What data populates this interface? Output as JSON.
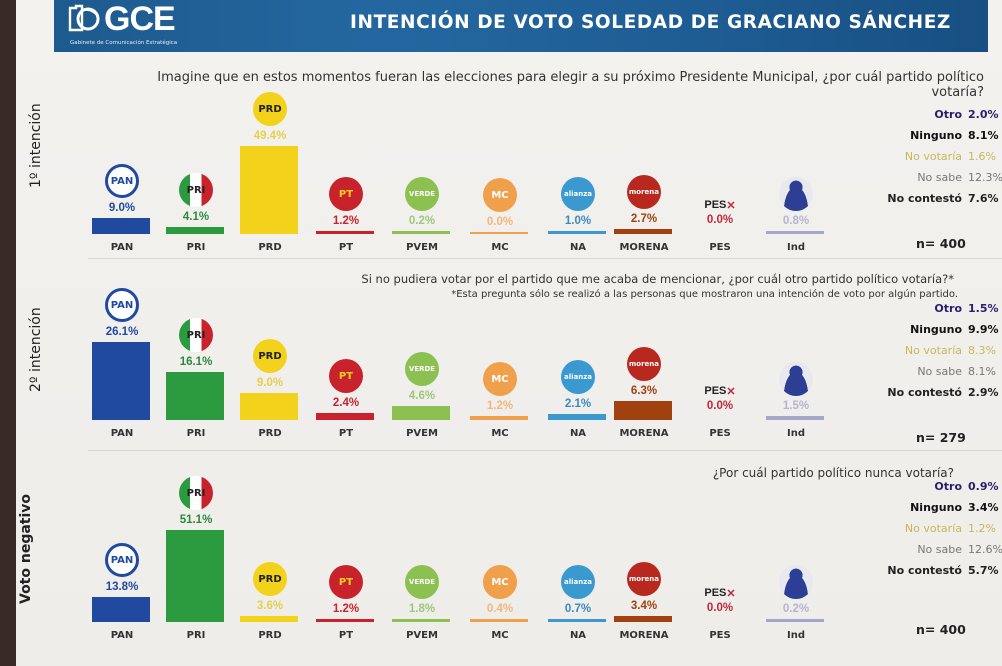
{
  "header": {
    "logo_text": "GCE",
    "logo_subtitle": "Gabinete de Comunicación Estratégica",
    "title": "INTENCIÓN DE VOTO SOLEDAD DE GRACIANO SÁNCHEZ"
  },
  "colors": {
    "header_bg": "#1e5c93",
    "PAN": "#1f4aa0",
    "PRI": "#2c9a3f",
    "PRD": "#f2d21a",
    "PT": "#c8232c",
    "PVEM": "#8cc152",
    "MC": "#f0a04b",
    "NA": "#3a9ad0",
    "MORENA": "#a0410f",
    "PES": "#c0283a",
    "Ind": "#a6a6cc"
  },
  "sections": [
    {
      "side_label": "1º intención",
      "question_line1": "Imagine que en estos momentos fueran las elecciones para elegir a su próximo Presidente Municipal, ¿por cuál partido político",
      "question_line2": "votaría?",
      "note": "",
      "n": "n= 400",
      "bars": [
        {
          "party": "PAN",
          "value": "9.0%"
        },
        {
          "party": "PRI",
          "value": "4.1%"
        },
        {
          "party": "PRD",
          "value": "49.4%"
        },
        {
          "party": "PT",
          "value": "1.2%"
        },
        {
          "party": "PVEM",
          "value": "0.2%"
        },
        {
          "party": "MC",
          "value": "0.0%"
        },
        {
          "party": "NA",
          "value": "1.0%"
        },
        {
          "party": "MORENA",
          "value": "2.7%"
        },
        {
          "party": "PES",
          "value": "0.0%"
        },
        {
          "party": "Ind",
          "value": "0.8%"
        }
      ],
      "extras": [
        {
          "label": "Otro",
          "value": "2.0%"
        },
        {
          "label": "Ninguno",
          "value": "8.1%"
        },
        {
          "label": "No votaría",
          "value": "1.6%"
        },
        {
          "label": "No sabe",
          "value": "12.3%"
        },
        {
          "label": "No contestó",
          "value": "7.6%"
        }
      ]
    },
    {
      "side_label": "2º intención",
      "question_line1": "Si no pudiera votar por el partido que me acaba de mencionar, ¿por cuál otro partido político votaría?*",
      "question_line2": "",
      "note": "*Esta pregunta sólo se realizó a las personas que mostraron una intención de voto por algún partido.",
      "n": "n= 279",
      "bars": [
        {
          "party": "PAN",
          "value": "26.1%"
        },
        {
          "party": "PRI",
          "value": "16.1%"
        },
        {
          "party": "PRD",
          "value": "9.0%"
        },
        {
          "party": "PT",
          "value": "2.4%"
        },
        {
          "party": "PVEM",
          "value": "4.6%"
        },
        {
          "party": "MC",
          "value": "1.2%"
        },
        {
          "party": "NA",
          "value": "2.1%"
        },
        {
          "party": "MORENA",
          "value": "6.3%"
        },
        {
          "party": "PES",
          "value": "0.0%"
        },
        {
          "party": "Ind",
          "value": "1.5%"
        }
      ],
      "extras": [
        {
          "label": "Otro",
          "value": "1.5%"
        },
        {
          "label": "Ninguno",
          "value": "9.9%"
        },
        {
          "label": "No votaría",
          "value": "8.3%"
        },
        {
          "label": "No sabe",
          "value": "8.1%"
        },
        {
          "label": "No contestó",
          "value": "2.9%"
        }
      ]
    },
    {
      "side_label": "Voto negativo",
      "question_line1": "¿Por cuál partido político nunca votaría?",
      "question_line2": "",
      "note": "",
      "n": "n= 400",
      "bars": [
        {
          "party": "PAN",
          "value": "13.8%"
        },
        {
          "party": "PRI",
          "value": "51.1%"
        },
        {
          "party": "PRD",
          "value": "3.6%"
        },
        {
          "party": "PT",
          "value": "1.2%"
        },
        {
          "party": "PVEM",
          "value": "1.8%"
        },
        {
          "party": "MC",
          "value": "0.4%"
        },
        {
          "party": "NA",
          "value": "0.7%"
        },
        {
          "party": "MORENA",
          "value": "3.4%"
        },
        {
          "party": "PES",
          "value": "0.0%"
        },
        {
          "party": "Ind",
          "value": "0.2%"
        }
      ],
      "extras": [
        {
          "label": "Otro",
          "value": "0.9%"
        },
        {
          "label": "Ninguno",
          "value": "3.4%"
        },
        {
          "label": "No votaría",
          "value": "1.2%"
        },
        {
          "label": "No sabe",
          "value": "12.6%"
        },
        {
          "label": "No contestó",
          "value": "5.7%"
        }
      ]
    }
  ],
  "chart_data": [
    {
      "type": "bar",
      "title": "1º intención",
      "subtitle": "Imagine que en estos momentos fueran las elecciones para elegir a su próximo Presidente Municipal, ¿por cuál partido político votaría?",
      "categories": [
        "PAN",
        "PRI",
        "PRD",
        "PT",
        "PVEM",
        "MC",
        "NA",
        "MORENA",
        "PES",
        "Ind"
      ],
      "values": [
        9.0,
        4.1,
        49.4,
        1.2,
        0.2,
        0.0,
        1.0,
        2.7,
        0.0,
        0.8
      ],
      "other_responses": {
        "Otro": 2.0,
        "Ninguno": 8.1,
        "No votaría": 1.6,
        "No sabe": 12.3,
        "No contestó": 7.6
      },
      "n": 400,
      "unit": "%",
      "grid": false
    },
    {
      "type": "bar",
      "title": "2º intención",
      "subtitle": "Si no pudiera votar por el partido que me acaba de mencionar, ¿por cuál otro partido político votaría?*",
      "annotation": "*Esta pregunta sólo se realizó a las personas que mostraron una intención de voto por algún partido.",
      "categories": [
        "PAN",
        "PRI",
        "PRD",
        "PT",
        "PVEM",
        "MC",
        "NA",
        "MORENA",
        "PES",
        "Ind"
      ],
      "values": [
        26.1,
        16.1,
        9.0,
        2.4,
        4.6,
        1.2,
        2.1,
        6.3,
        0.0,
        1.5
      ],
      "other_responses": {
        "Otro": 1.5,
        "Ninguno": 9.9,
        "No votaría": 8.3,
        "No sabe": 8.1,
        "No contestó": 2.9
      },
      "n": 279,
      "unit": "%",
      "grid": false
    },
    {
      "type": "bar",
      "title": "Voto negativo",
      "subtitle": "¿Por cuál partido político nunca votaría?",
      "categories": [
        "PAN",
        "PRI",
        "PRD",
        "PT",
        "PVEM",
        "MC",
        "NA",
        "MORENA",
        "PES",
        "Ind"
      ],
      "values": [
        13.8,
        51.1,
        3.6,
        1.2,
        1.8,
        0.4,
        0.7,
        3.4,
        0.0,
        0.2
      ],
      "other_responses": {
        "Otro": 0.9,
        "Ninguno": 3.4,
        "No votaría": 1.2,
        "No sabe": 12.6,
        "No contestó": 5.7
      },
      "n": 400,
      "unit": "%",
      "grid": false
    }
  ]
}
